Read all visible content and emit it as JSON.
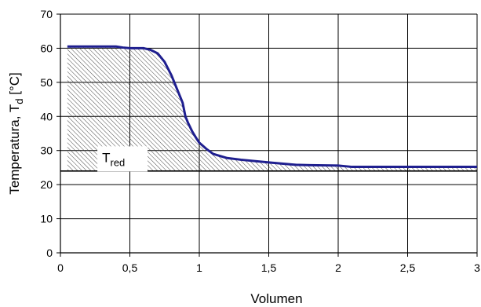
{
  "chart_data": {
    "type": "line",
    "xlabel": "Volumen",
    "ylabel": "Temperatura, T_d [°C]",
    "ylabel_parts": {
      "main": "Temperatura, T",
      "sub": "d",
      "unit": " [°C]"
    },
    "xlim": [
      0,
      3
    ],
    "ylim": [
      0,
      70
    ],
    "grid": true,
    "x_ticks": [
      0,
      0.5,
      1,
      1.5,
      2,
      2.5,
      3
    ],
    "x_tick_labels": [
      "0",
      "0,5",
      "1",
      "1,5",
      "2",
      "2,5",
      "3"
    ],
    "y_ticks": [
      0,
      10,
      20,
      30,
      40,
      50,
      60,
      70
    ],
    "y_tick_labels": [
      "0",
      "10",
      "20",
      "30",
      "40",
      "50",
      "60",
      "70"
    ],
    "reference_line_y": 24,
    "annotation": {
      "main": "T",
      "sub": "red",
      "x": 0.3,
      "y": 28
    },
    "line_color": "#1f1f8f",
    "series": [
      {
        "x": [
          0.05,
          0.2,
          0.4,
          0.45,
          0.5,
          0.6,
          0.65,
          0.7,
          0.75,
          0.8,
          0.85,
          0.88,
          0.9,
          0.92,
          0.95,
          0.98,
          1.0,
          1.05,
          1.1,
          1.2,
          1.3,
          1.5,
          1.7,
          1.8,
          2.0,
          2.05,
          2.1,
          2.5,
          3.0
        ],
        "y": [
          60.5,
          60.5,
          60.5,
          60.2,
          60.0,
          60.0,
          59.5,
          58.5,
          56.0,
          52.0,
          47.0,
          44.0,
          40.0,
          38.0,
          35.5,
          33.5,
          32.3,
          30.5,
          29.0,
          27.8,
          27.3,
          26.5,
          25.8,
          25.7,
          25.6,
          25.4,
          25.2,
          25.2,
          25.2
        ]
      }
    ]
  }
}
